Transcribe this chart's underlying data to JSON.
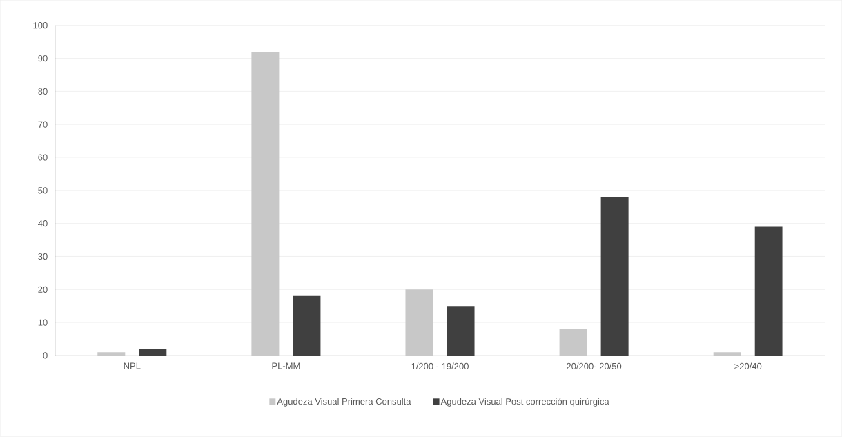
{
  "chart_data": {
    "type": "bar",
    "categories": [
      "NPL",
      "PL-MM",
      "1/200 - 19/200",
      "20/200- 20/50",
      ">20/40"
    ],
    "series": [
      {
        "name": "Agudeza Visual Primera Consulta",
        "color": "#c8c8c8",
        "values": [
          1,
          92,
          20,
          8,
          1
        ]
      },
      {
        "name": "Agudeza Visual Post corrección quirúrgica",
        "color": "#404040",
        "values": [
          2,
          18,
          15,
          48,
          39
        ]
      }
    ],
    "ylim": [
      0,
      100
    ],
    "yticks": [
      0,
      10,
      20,
      30,
      40,
      50,
      60,
      70,
      80,
      90,
      100
    ],
    "grid": "y",
    "legend": "bottom"
  }
}
